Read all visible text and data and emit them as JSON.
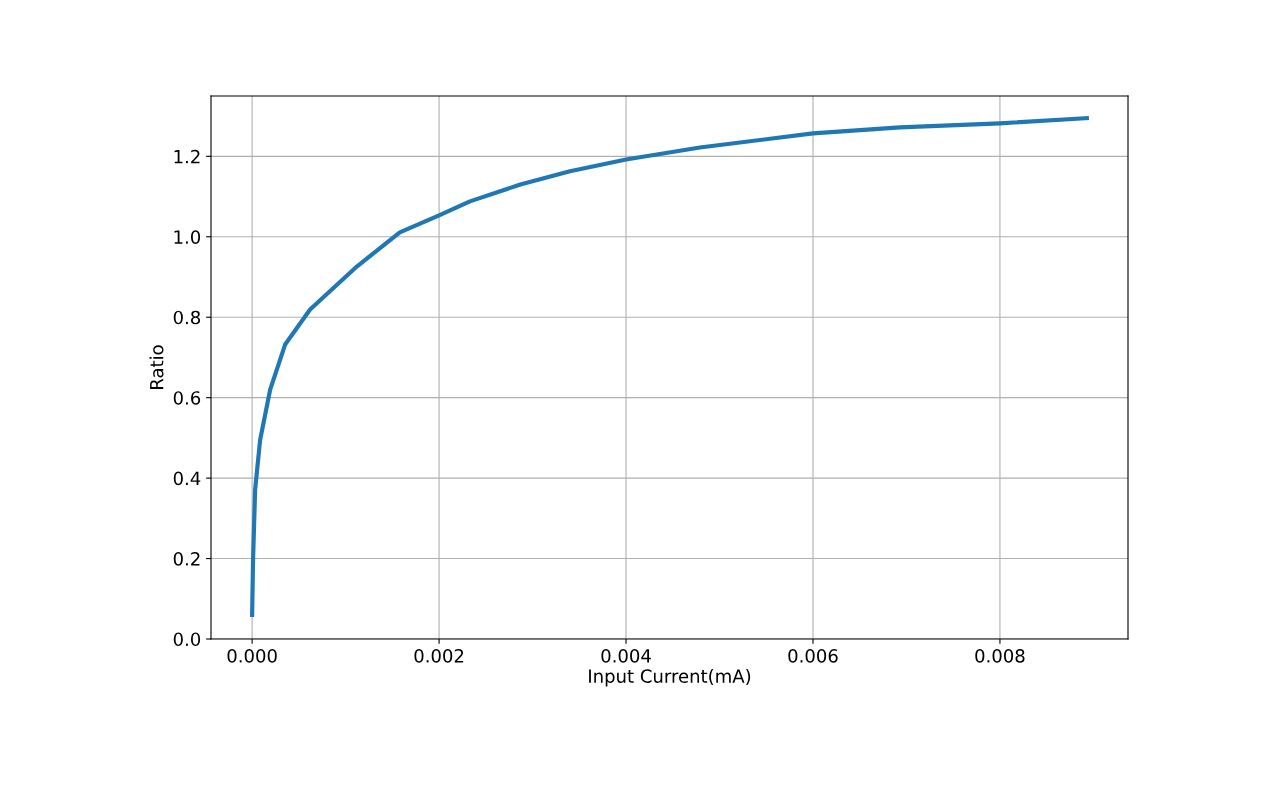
{
  "chart_data": {
    "type": "line",
    "xlabel": "Input Current(mA)",
    "ylabel": "Ratio",
    "x": [
      0.0,
      1e-05,
      3.2e-05,
      8.56e-05,
      0.000193,
      0.000353,
      0.00062,
      0.00112,
      0.00158,
      0.002,
      0.00233,
      0.00287,
      0.0034,
      0.004,
      0.00479,
      0.006,
      0.00693,
      0.008,
      0.00893
    ],
    "series": [
      {
        "color": "#1f77b4",
        "values": [
          0.06,
          0.197,
          0.371,
          0.495,
          0.62,
          0.732,
          0.819,
          0.926,
          1.011,
          1.053,
          1.088,
          1.13,
          1.163,
          1.192,
          1.222,
          1.257,
          1.272,
          1.282,
          1.295
        ]
      }
    ],
    "xlim": [
      -0.00044,
      0.00937
    ],
    "ylim": [
      0,
      1.35
    ],
    "xticks": [
      {
        "value": 0.0,
        "label": "0.000"
      },
      {
        "value": 0.002,
        "label": "0.002"
      },
      {
        "value": 0.004,
        "label": "0.004"
      },
      {
        "value": 0.006,
        "label": "0.006"
      },
      {
        "value": 0.008,
        "label": "0.008"
      }
    ],
    "yticks": [
      {
        "value": 0.0,
        "label": "0.0"
      },
      {
        "value": 0.2,
        "label": "0.2"
      },
      {
        "value": 0.4,
        "label": "0.4"
      },
      {
        "value": 0.6,
        "label": "0.6"
      },
      {
        "value": 0.8,
        "label": "0.8"
      },
      {
        "value": 1.0,
        "label": "1.0"
      },
      {
        "value": 1.2,
        "label": "1.2"
      }
    ],
    "grid": true,
    "marker": "none",
    "line_style": "solid"
  }
}
